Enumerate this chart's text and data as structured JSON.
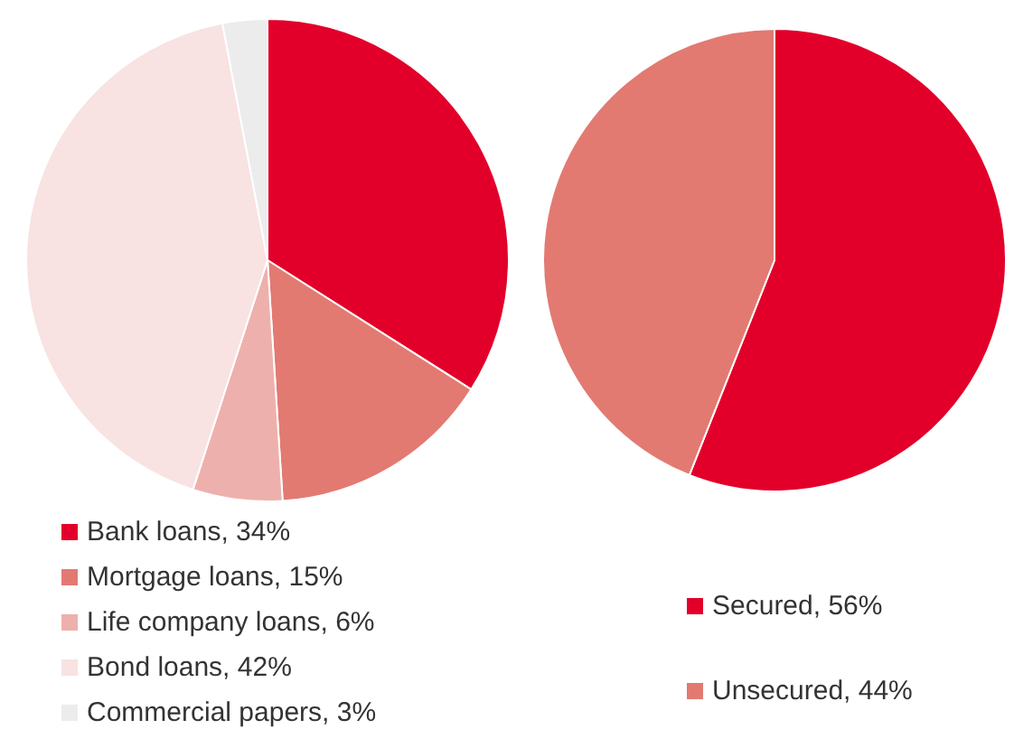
{
  "chart_data": [
    {
      "type": "pie",
      "categories": [
        "Bank loans, 34%",
        "Mortgage loans, 15%",
        "Life company loans, 6%",
        "Bond loans, 42%",
        "Commercial papers, 3%"
      ],
      "values": [
        34,
        15,
        6,
        42,
        3
      ],
      "colors": [
        "#e2002a",
        "#e27a72",
        "#eeb0ac",
        "#f8e2e2",
        "#ececec"
      ],
      "legend": "bottom"
    },
    {
      "type": "pie",
      "categories": [
        "Secured, 56%",
        "Unsecured, 44%"
      ],
      "values": [
        56,
        44
      ],
      "colors": [
        "#e2002a",
        "#e27a72"
      ],
      "legend": "bottom"
    }
  ]
}
